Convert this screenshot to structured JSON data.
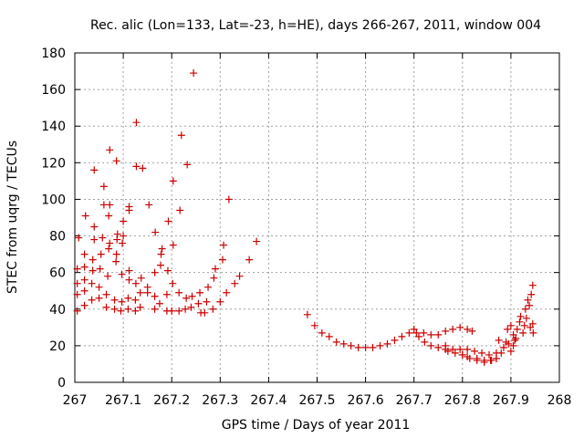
{
  "chart_data": {
    "type": "scatter",
    "title": "Rec. alic (Lon=133, Lat=-23, h=HE), days 266-267, 2011, window 004",
    "xlabel": "GPS time / Days of year 2011",
    "ylabel": "STEC from uqrg / TECUs",
    "xlim": [
      267,
      268
    ],
    "ylim": [
      0,
      180
    ],
    "xticks": [
      267,
      267.1,
      267.2,
      267.3,
      267.4,
      267.5,
      267.6,
      267.7,
      267.8,
      267.9,
      268
    ],
    "xtick_labels": [
      "267",
      "267.1",
      "267.2",
      "267.3",
      "267.4",
      "267.5",
      "267.6",
      "267.7",
      "267.8",
      "267.9",
      "268"
    ],
    "yticks": [
      0,
      20,
      40,
      60,
      80,
      100,
      120,
      140,
      160,
      180
    ],
    "ytick_labels": [
      "0",
      "20",
      "40",
      "60",
      "80",
      "100",
      "120",
      "140",
      "160",
      "180"
    ],
    "grid": true,
    "marker": "+",
    "color": "#cc0000",
    "points": [
      [
        267.005,
        39
      ],
      [
        267.005,
        48
      ],
      [
        267.005,
        54
      ],
      [
        267.005,
        62
      ],
      [
        267.008,
        79
      ],
      [
        267.02,
        42
      ],
      [
        267.02,
        50
      ],
      [
        267.02,
        56
      ],
      [
        267.02,
        63
      ],
      [
        267.02,
        70
      ],
      [
        267.022,
        91
      ],
      [
        267.035,
        45
      ],
      [
        267.035,
        54
      ],
      [
        267.037,
        61
      ],
      [
        267.037,
        67
      ],
      [
        267.04,
        78
      ],
      [
        267.04,
        85
      ],
      [
        267.04,
        116
      ],
      [
        267.05,
        46
      ],
      [
        267.05,
        52
      ],
      [
        267.052,
        62
      ],
      [
        267.054,
        70
      ],
      [
        267.057,
        79
      ],
      [
        267.06,
        97
      ],
      [
        267.06,
        107
      ],
      [
        267.065,
        41
      ],
      [
        267.065,
        48
      ],
      [
        267.068,
        58
      ],
      [
        267.07,
        73
      ],
      [
        267.072,
        76
      ],
      [
        267.07,
        91
      ],
      [
        267.072,
        97
      ],
      [
        267.072,
        127
      ],
      [
        267.082,
        40
      ],
      [
        267.082,
        45
      ],
      [
        267.085,
        66
      ],
      [
        267.086,
        70
      ],
      [
        267.087,
        78
      ],
      [
        267.088,
        81
      ],
      [
        267.086,
        121
      ],
      [
        267.095,
        39
      ],
      [
        267.097,
        44
      ],
      [
        267.097,
        59
      ],
      [
        267.098,
        76
      ],
      [
        267.1,
        80
      ],
      [
        267.1,
        88
      ],
      [
        267.11,
        40
      ],
      [
        267.11,
        46
      ],
      [
        267.112,
        56
      ],
      [
        267.112,
        61
      ],
      [
        267.112,
        94
      ],
      [
        267.112,
        96
      ],
      [
        267.125,
        39
      ],
      [
        267.125,
        45
      ],
      [
        267.126,
        54
      ],
      [
        267.127,
        118
      ],
      [
        267.127,
        142
      ],
      [
        267.135,
        41
      ],
      [
        267.135,
        49
      ],
      [
        267.137,
        57
      ],
      [
        267.14,
        117
      ],
      [
        267.15,
        49
      ],
      [
        267.15,
        52
      ],
      [
        267.153,
        97
      ],
      [
        267.165,
        40
      ],
      [
        267.165,
        47
      ],
      [
        267.165,
        60
      ],
      [
        267.166,
        82
      ],
      [
        267.175,
        43
      ],
      [
        267.177,
        64
      ],
      [
        267.178,
        70
      ],
      [
        267.18,
        73
      ],
      [
        267.19,
        39
      ],
      [
        267.19,
        48
      ],
      [
        267.192,
        61
      ],
      [
        267.193,
        88
      ],
      [
        267.2,
        39
      ],
      [
        267.202,
        54
      ],
      [
        267.203,
        75
      ],
      [
        267.203,
        110
      ],
      [
        267.215,
        39
      ],
      [
        267.215,
        49
      ],
      [
        267.217,
        94
      ],
      [
        267.22,
        135
      ],
      [
        267.228,
        40
      ],
      [
        267.23,
        46
      ],
      [
        267.232,
        119
      ],
      [
        267.24,
        41
      ],
      [
        267.242,
        47
      ],
      [
        267.245,
        169
      ],
      [
        267.255,
        43
      ],
      [
        267.258,
        49
      ],
      [
        267.26,
        38
      ],
      [
        267.268,
        38
      ],
      [
        267.272,
        44
      ],
      [
        267.275,
        52
      ],
      [
        267.285,
        40
      ],
      [
        267.287,
        57
      ],
      [
        267.29,
        62
      ],
      [
        267.3,
        44
      ],
      [
        267.305,
        67
      ],
      [
        267.307,
        75
      ],
      [
        267.313,
        49
      ],
      [
        267.318,
        100
      ],
      [
        267.33,
        54
      ],
      [
        267.34,
        58
      ],
      [
        267.36,
        67
      ],
      [
        267.375,
        77
      ],
      [
        267.48,
        37
      ],
      [
        267.495,
        31
      ],
      [
        267.51,
        27
      ],
      [
        267.525,
        25
      ],
      [
        267.54,
        22
      ],
      [
        267.555,
        21
      ],
      [
        267.57,
        20
      ],
      [
        267.585,
        19
      ],
      [
        267.6,
        19
      ],
      [
        267.615,
        19
      ],
      [
        267.63,
        20
      ],
      [
        267.645,
        21
      ],
      [
        267.66,
        23
      ],
      [
        267.675,
        25
      ],
      [
        267.69,
        27
      ],
      [
        267.7,
        29
      ],
      [
        267.705,
        27
      ],
      [
        267.72,
        27
      ],
      [
        267.735,
        26
      ],
      [
        267.75,
        26
      ],
      [
        267.765,
        28
      ],
      [
        267.78,
        29
      ],
      [
        267.795,
        30
      ],
      [
        267.81,
        29
      ],
      [
        267.82,
        28
      ],
      [
        267.71,
        25
      ],
      [
        267.722,
        22
      ],
      [
        267.735,
        20
      ],
      [
        267.75,
        19
      ],
      [
        267.765,
        18
      ],
      [
        267.78,
        18
      ],
      [
        267.795,
        18
      ],
      [
        267.81,
        18
      ],
      [
        267.825,
        17
      ],
      [
        267.84,
        16
      ],
      [
        267.855,
        15
      ],
      [
        267.87,
        16
      ],
      [
        267.765,
        20
      ],
      [
        267.77,
        17
      ],
      [
        267.785,
        16
      ],
      [
        267.8,
        15
      ],
      [
        267.81,
        14
      ],
      [
        267.83,
        13
      ],
      [
        267.845,
        12
      ],
      [
        267.86,
        12
      ],
      [
        267.87,
        13
      ],
      [
        267.8,
        15
      ],
      [
        267.815,
        13
      ],
      [
        267.83,
        12
      ],
      [
        267.845,
        11
      ],
      [
        267.858,
        12
      ],
      [
        267.87,
        13
      ],
      [
        267.88,
        16
      ],
      [
        267.875,
        23
      ],
      [
        267.885,
        19
      ],
      [
        267.89,
        22
      ],
      [
        267.895,
        21
      ],
      [
        267.9,
        17
      ],
      [
        267.905,
        20
      ],
      [
        267.91,
        24
      ],
      [
        267.893,
        29
      ],
      [
        267.9,
        31
      ],
      [
        267.905,
        26
      ],
      [
        267.908,
        23
      ],
      [
        267.913,
        29
      ],
      [
        267.918,
        33
      ],
      [
        267.92,
        36
      ],
      [
        267.925,
        27
      ],
      [
        267.928,
        31
      ],
      [
        267.93,
        40
      ],
      [
        267.932,
        35
      ],
      [
        267.935,
        45
      ],
      [
        267.938,
        42
      ],
      [
        267.94,
        30
      ],
      [
        267.942,
        48
      ],
      [
        267.945,
        53
      ],
      [
        267.945,
        32
      ],
      [
        267.946,
        27
      ]
    ]
  }
}
